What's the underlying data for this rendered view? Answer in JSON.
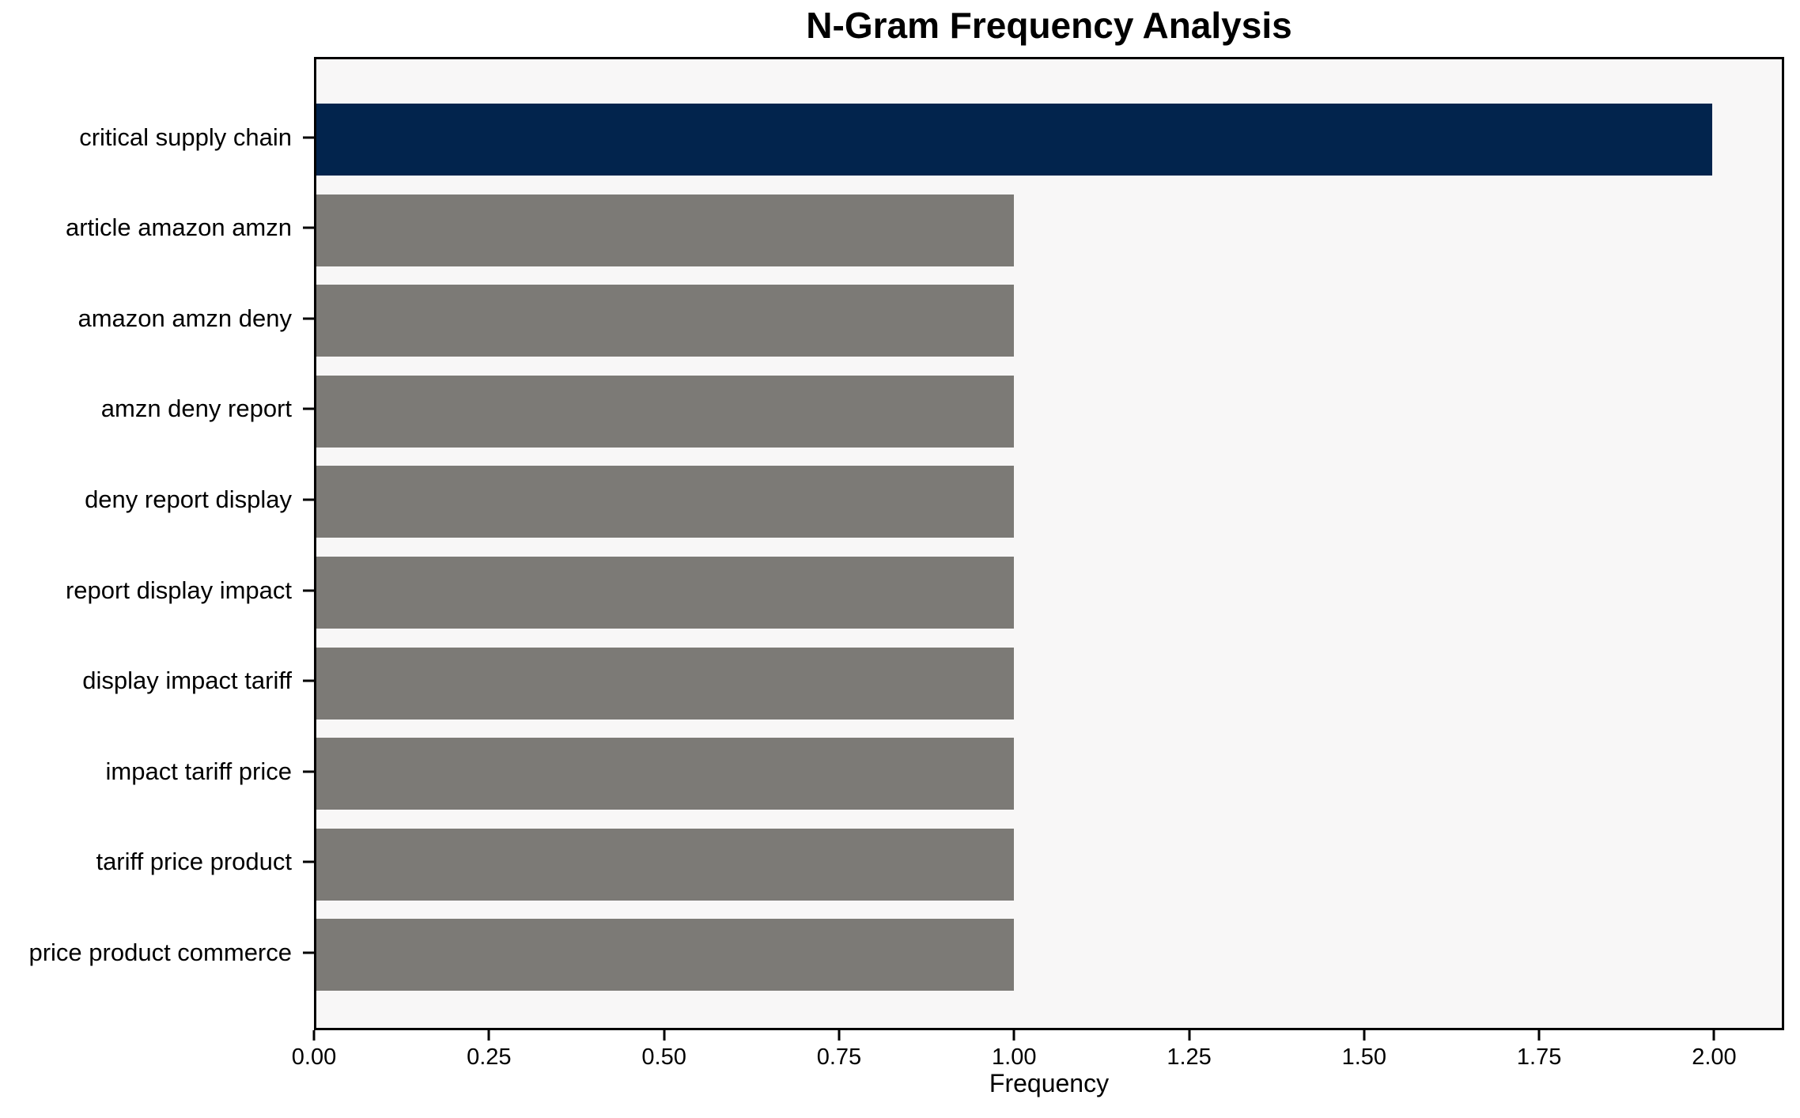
{
  "chart_data": {
    "type": "bar",
    "orientation": "horizontal",
    "title": "N-Gram Frequency Analysis",
    "xlabel": "Frequency",
    "ylabel": "",
    "categories": [
      "critical supply chain",
      "article amazon amzn",
      "amazon amzn deny",
      "amzn deny report",
      "deny report display",
      "report display impact",
      "display impact tariff",
      "impact tariff price",
      "tariff price product",
      "price product commerce"
    ],
    "values": [
      2,
      1,
      1,
      1,
      1,
      1,
      1,
      1,
      1,
      1
    ],
    "bar_colors": [
      "#02244d",
      "#7c7a76",
      "#7c7a76",
      "#7c7a76",
      "#7c7a76",
      "#7c7a76",
      "#7c7a76",
      "#7c7a76",
      "#7c7a76",
      "#7c7a76"
    ],
    "xlim": [
      0,
      2.1
    ],
    "x_ticks": [
      0,
      0.25,
      0.5,
      0.75,
      1.0,
      1.25,
      1.5,
      1.75,
      2.0
    ],
    "x_tick_labels": [
      "0.00",
      "0.25",
      "0.50",
      "0.75",
      "1.00",
      "1.25",
      "1.50",
      "1.75",
      "2.00"
    ],
    "grid": false,
    "legend": null,
    "colors": {
      "highlight": "#02244d",
      "default": "#7c7a76",
      "plot_background": "#f8f7f7",
      "figure_background": "#ffffff",
      "spine": "#000000",
      "text": "#000000"
    }
  }
}
